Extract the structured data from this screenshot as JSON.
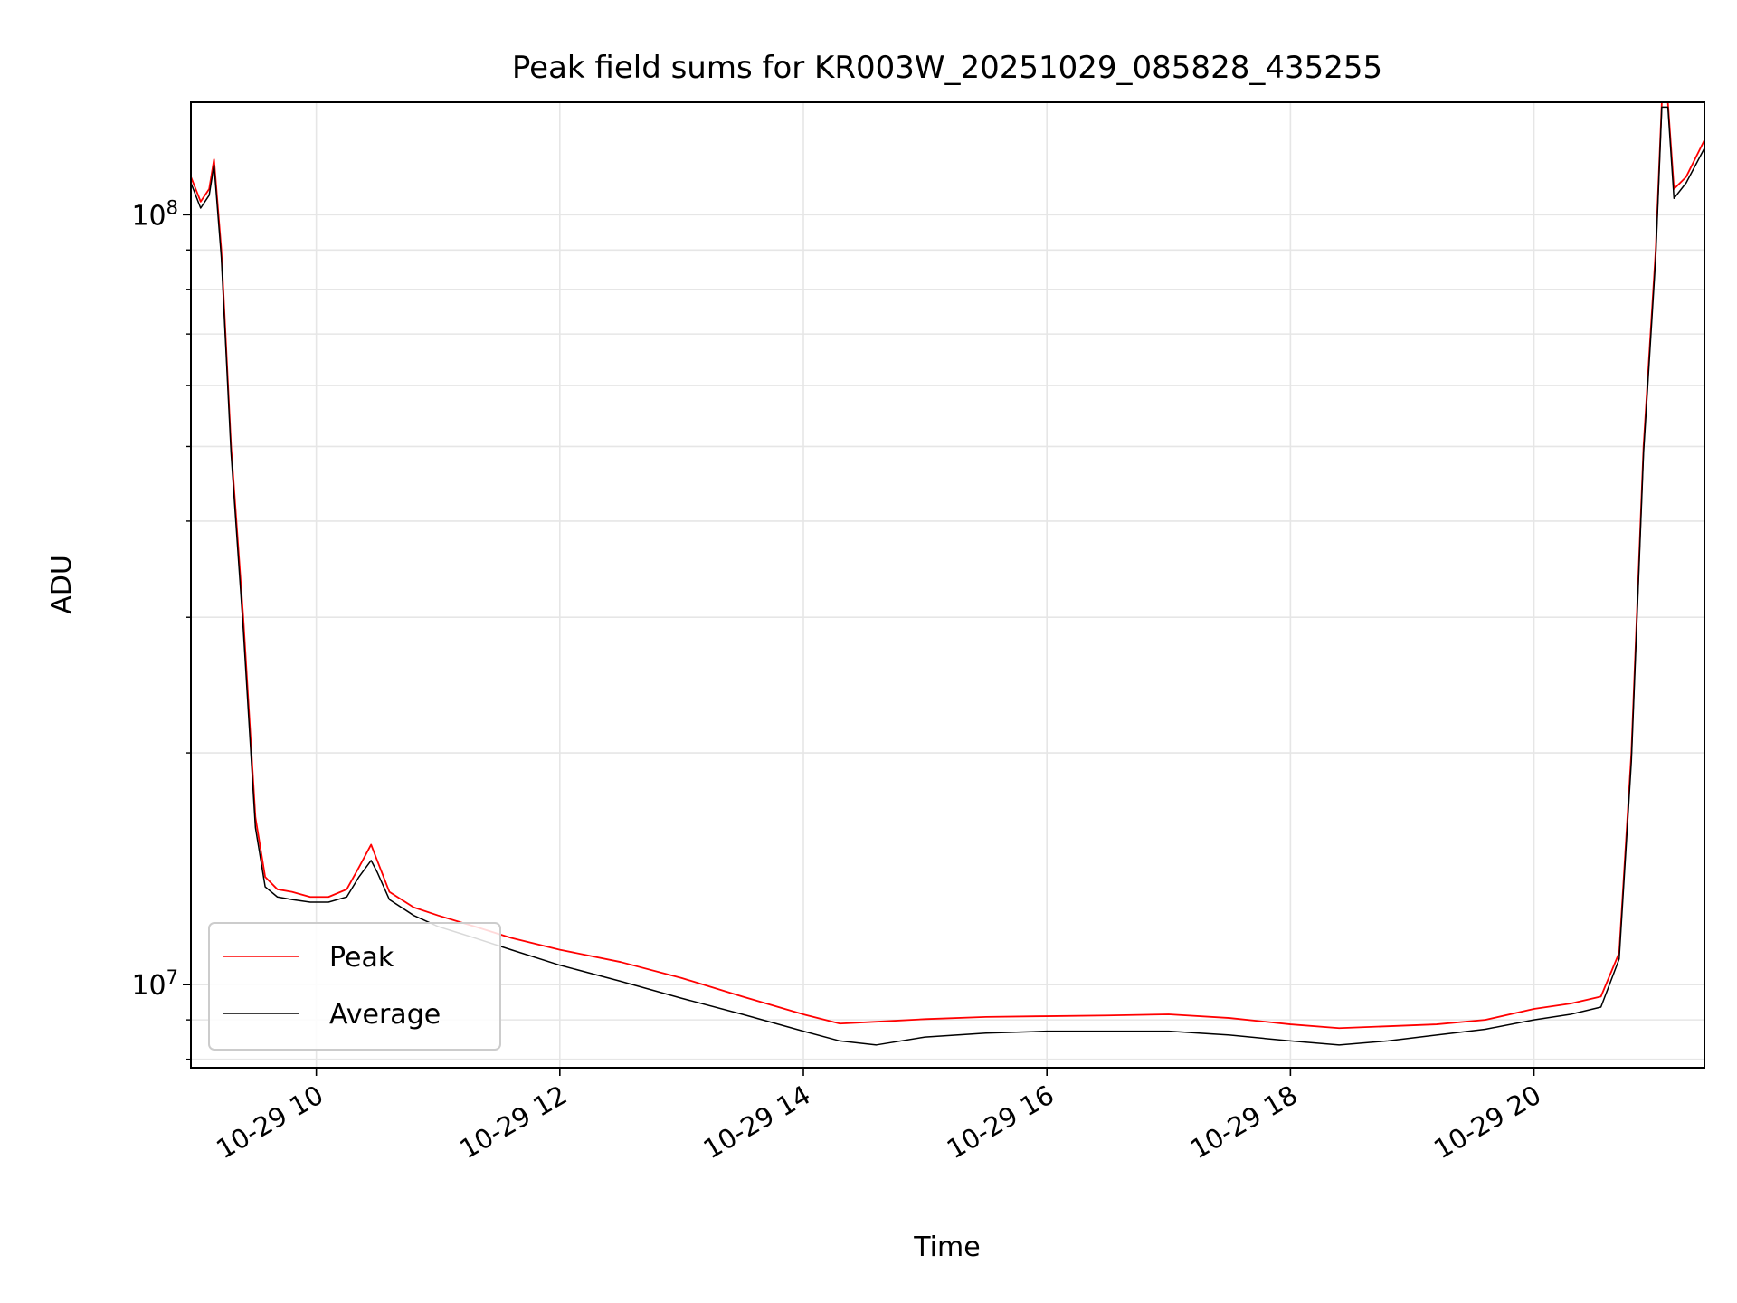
{
  "chart_data": {
    "type": "line",
    "title": "Peak field sums for KR003W_20251029_085828_435255",
    "xlabel": "Time",
    "ylabel": "ADU",
    "yscale": "log",
    "xlim": [
      8.97,
      21.4
    ],
    "ylim": [
      7800000,
      140000000
    ],
    "xticks": [
      {
        "value": 10,
        "label": "10-29 10"
      },
      {
        "value": 12,
        "label": "10-29 12"
      },
      {
        "value": 14,
        "label": "10-29 14"
      },
      {
        "value": 16,
        "label": "10-29 16"
      },
      {
        "value": 18,
        "label": "10-29 18"
      },
      {
        "value": 20,
        "label": "10-29 20"
      }
    ],
    "yticks_major": [
      {
        "value": 10000000,
        "base": "10",
        "exp": "7"
      },
      {
        "value": 100000000,
        "base": "10",
        "exp": "8"
      }
    ],
    "yticks_minor": [
      8000000,
      9000000,
      20000000,
      30000000,
      40000000,
      50000000,
      60000000,
      70000000,
      80000000,
      90000000
    ],
    "grid": true,
    "legend_position": "lower-left",
    "series": [
      {
        "name": "Peak",
        "color": "#ff0000",
        "x": [
          8.97,
          9.05,
          9.12,
          9.16,
          9.22,
          9.3,
          9.4,
          9.5,
          9.58,
          9.68,
          9.8,
          9.95,
          10.1,
          10.25,
          10.35,
          10.45,
          10.5,
          10.6,
          10.8,
          11.0,
          11.3,
          11.6,
          12.0,
          12.5,
          13.0,
          13.5,
          14.0,
          14.3,
          14.6,
          15.0,
          15.5,
          16.0,
          16.5,
          17.0,
          17.5,
          18.0,
          18.4,
          18.8,
          19.2,
          19.6,
          20.0,
          20.3,
          20.55,
          20.7,
          20.8,
          20.9,
          21.0,
          21.05,
          21.1,
          21.15,
          21.25,
          21.4
        ],
        "y": [
          112000000,
          104000000,
          108000000,
          118000000,
          90000000,
          50000000,
          30000000,
          16500000,
          13800000,
          13300000,
          13200000,
          13000000,
          13000000,
          13300000,
          14200000,
          15200000,
          14500000,
          13200000,
          12600000,
          12300000,
          11900000,
          11500000,
          11100000,
          10700000,
          10200000,
          9650000,
          9150000,
          8900000,
          8950000,
          9020000,
          9080000,
          9100000,
          9120000,
          9150000,
          9050000,
          8880000,
          8780000,
          8830000,
          8880000,
          9000000,
          9300000,
          9450000,
          9650000,
          11000000,
          20000000,
          50000000,
          90000000,
          140000000,
          140000000,
          108000000,
          112000000,
          125000000
        ]
      },
      {
        "name": "Average",
        "color": "#000000",
        "x": [
          8.97,
          9.05,
          9.12,
          9.16,
          9.22,
          9.3,
          9.4,
          9.5,
          9.58,
          9.68,
          9.8,
          9.95,
          10.1,
          10.25,
          10.35,
          10.45,
          10.5,
          10.6,
          10.8,
          11.0,
          11.3,
          11.6,
          12.0,
          12.5,
          13.0,
          13.5,
          14.0,
          14.3,
          14.6,
          15.0,
          15.5,
          16.0,
          16.5,
          17.0,
          17.5,
          18.0,
          18.4,
          18.8,
          19.2,
          19.6,
          20.0,
          20.3,
          20.55,
          20.7,
          20.8,
          20.9,
          21.0,
          21.05,
          21.1,
          21.15,
          21.25,
          21.4
        ],
        "y": [
          110000000,
          102000000,
          106000000,
          116000000,
          88000000,
          49000000,
          29000000,
          16000000,
          13400000,
          13000000,
          12900000,
          12800000,
          12800000,
          13000000,
          13800000,
          14500000,
          14000000,
          12900000,
          12300000,
          11900000,
          11500000,
          11100000,
          10600000,
          10100000,
          9600000,
          9150000,
          8700000,
          8450000,
          8350000,
          8550000,
          8650000,
          8700000,
          8700000,
          8700000,
          8600000,
          8450000,
          8350000,
          8450000,
          8600000,
          8750000,
          9000000,
          9150000,
          9350000,
          10800000,
          19500000,
          49000000,
          88000000,
          138000000,
          138000000,
          105000000,
          110000000,
          122000000
        ]
      }
    ]
  }
}
